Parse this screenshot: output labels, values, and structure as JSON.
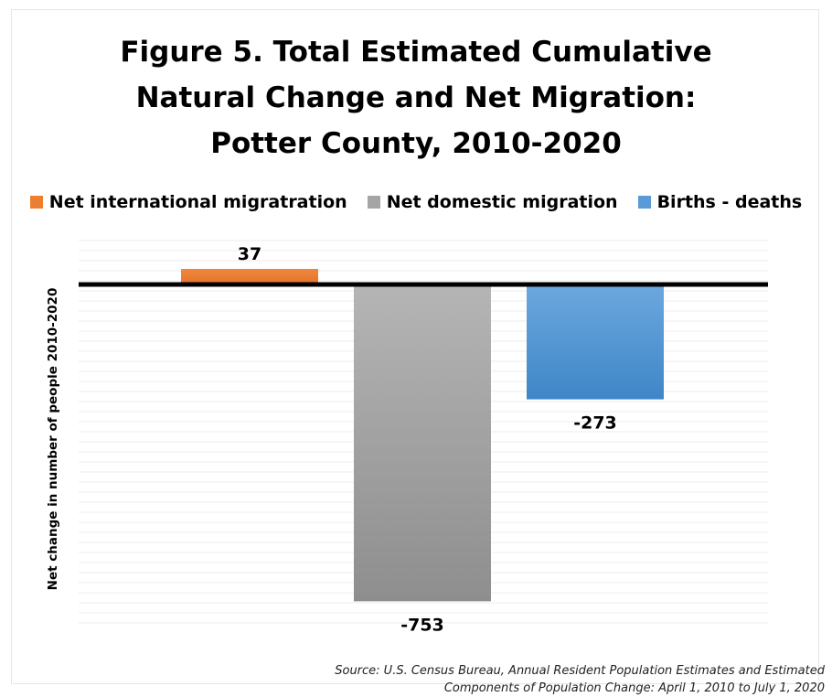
{
  "title_lines": [
    "Figure 5. Total Estimated Cumulative",
    "Natural Change and Net Migration:",
    "Potter County, 2010-2020"
  ],
  "ylabel": "Net change in number of people 2010-2020",
  "source_lines": [
    "Source: U.S. Census Bureau, Annual Resident Population Estimates and Estimated",
    "Components of Population Change: April 1, 2010 to July 1, 2020"
  ],
  "chart_data": {
    "type": "bar",
    "title": "Figure 5. Total Estimated Cumulative Natural Change and Net Migration: Potter County, 2010-2020",
    "ylabel": "Net change in number of people 2010-2020",
    "legend_position": "top",
    "grid": true,
    "ylim": [
      -800,
      100
    ],
    "series": [
      {
        "name": "Net international migratration",
        "value": 37,
        "label": "37",
        "color": "#ED7D31"
      },
      {
        "name": "Net domestic migration",
        "value": -753,
        "label": "-753",
        "color": "#A5A5A5"
      },
      {
        "name": "Births  - deaths",
        "value": -273,
        "label": "-273",
        "color": "#5B9BD5"
      }
    ]
  }
}
